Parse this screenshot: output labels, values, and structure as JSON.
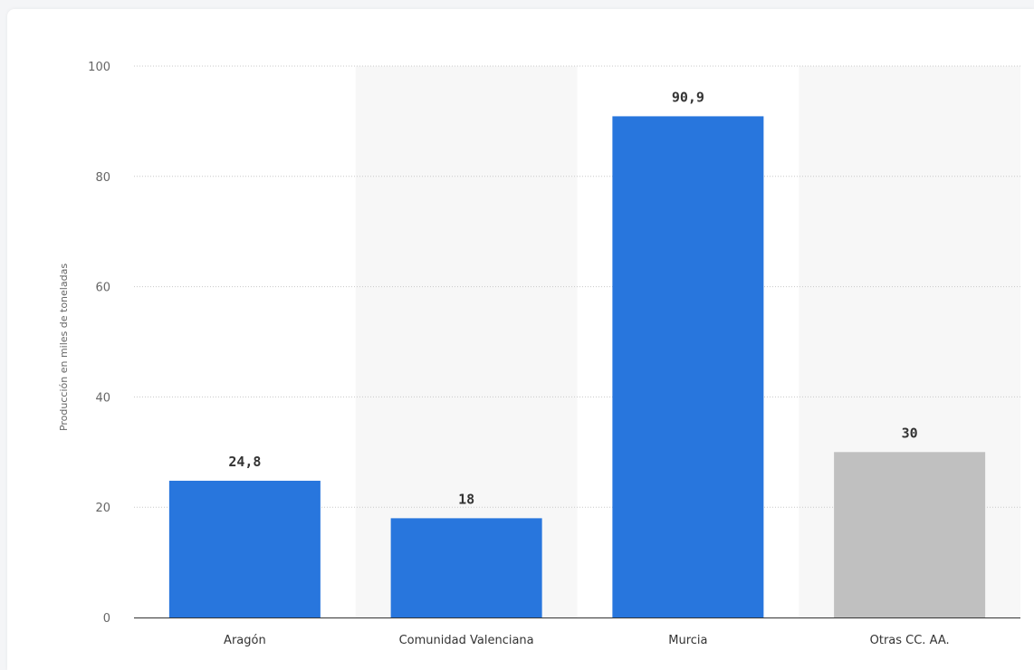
{
  "chart_data": {
    "type": "bar",
    "title": "",
    "xlabel": "",
    "ylabel": "Producción en miles de toneladas",
    "categories": [
      "Aragón",
      "Comunidad Valenciana",
      "Murcia",
      "Otras CC. AA."
    ],
    "values": [
      24.8,
      18,
      90.9,
      30
    ],
    "value_labels": [
      "24,8",
      "18",
      "90,9",
      "30"
    ],
    "bar_colors": [
      "#2876dd",
      "#2876dd",
      "#2876dd",
      "#c0c0c0"
    ],
    "ylim": [
      0,
      100
    ],
    "yticks": [
      0,
      20,
      40,
      60,
      80,
      100
    ],
    "grid": true,
    "legend": "none"
  }
}
